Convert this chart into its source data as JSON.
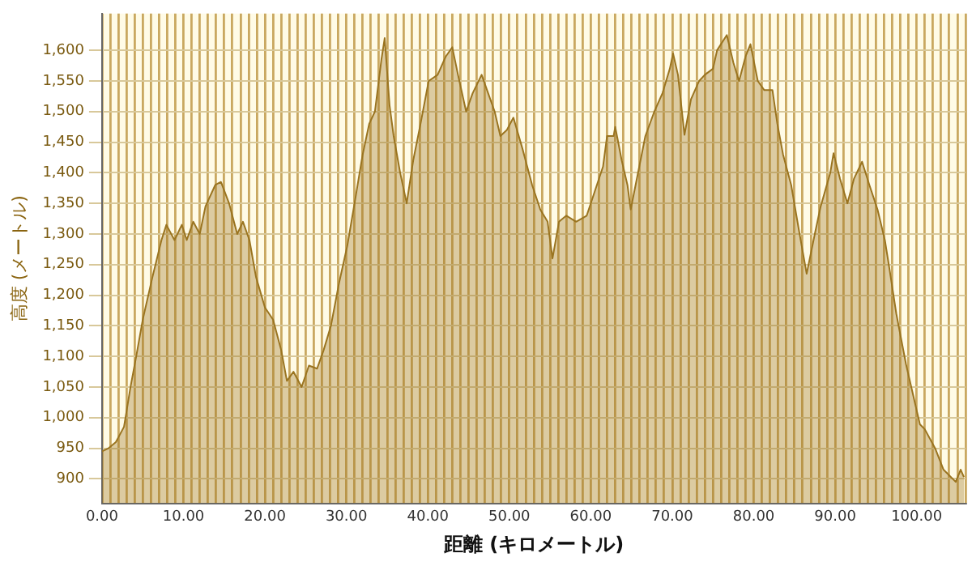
{
  "chart_data": {
    "type": "area",
    "xlabel": "距離 (キロメートル)",
    "ylabel": "高度 (メートル)",
    "xlim": [
      0,
      106
    ],
    "ylim": [
      860,
      1660
    ],
    "yticks": [
      {
        "value": 900,
        "label": "900"
      },
      {
        "value": 950,
        "label": "950"
      },
      {
        "value": 1000,
        "label": "1,000"
      },
      {
        "value": 1050,
        "label": "1,050"
      },
      {
        "value": 1100,
        "label": "1,100"
      },
      {
        "value": 1150,
        "label": "1,150"
      },
      {
        "value": 1200,
        "label": "1,200"
      },
      {
        "value": 1250,
        "label": "1,250"
      },
      {
        "value": 1300,
        "label": "1,300"
      },
      {
        "value": 1350,
        "label": "1,350"
      },
      {
        "value": 1400,
        "label": "1,400"
      },
      {
        "value": 1450,
        "label": "1,450"
      },
      {
        "value": 1500,
        "label": "1,500"
      },
      {
        "value": 1550,
        "label": "1,550"
      },
      {
        "value": 1600,
        "label": "1,600"
      }
    ],
    "xticks": [
      {
        "value": 0,
        "label": "0.00"
      },
      {
        "value": 1,
        "label": null
      },
      {
        "value": 2,
        "label": null
      },
      {
        "value": 3,
        "label": null
      },
      {
        "value": 4,
        "label": null
      },
      {
        "value": 5,
        "label": null
      },
      {
        "value": 6,
        "label": null
      },
      {
        "value": 7,
        "label": null
      },
      {
        "value": 8,
        "label": null
      },
      {
        "value": 9,
        "label": null
      },
      {
        "value": 10,
        "label": "10.00"
      },
      {
        "value": 11,
        "label": null
      },
      {
        "value": 12,
        "label": null
      },
      {
        "value": 13,
        "label": null
      },
      {
        "value": 14,
        "label": null
      },
      {
        "value": 15,
        "label": null
      },
      {
        "value": 16,
        "label": null
      },
      {
        "value": 17,
        "label": null
      },
      {
        "value": 18,
        "label": null
      },
      {
        "value": 19,
        "label": null
      },
      {
        "value": 20,
        "label": "20.00"
      },
      {
        "value": 21,
        "label": null
      },
      {
        "value": 22,
        "label": null
      },
      {
        "value": 23,
        "label": null
      },
      {
        "value": 24,
        "label": null
      },
      {
        "value": 25,
        "label": null
      },
      {
        "value": 26,
        "label": null
      },
      {
        "value": 27,
        "label": null
      },
      {
        "value": 28,
        "label": null
      },
      {
        "value": 29,
        "label": null
      },
      {
        "value": 30,
        "label": "30.00"
      },
      {
        "value": 31,
        "label": null
      },
      {
        "value": 32,
        "label": null
      },
      {
        "value": 33,
        "label": null
      },
      {
        "value": 34,
        "label": null
      },
      {
        "value": 35,
        "label": null
      },
      {
        "value": 36,
        "label": null
      },
      {
        "value": 37,
        "label": null
      },
      {
        "value": 38,
        "label": null
      },
      {
        "value": 39,
        "label": null
      },
      {
        "value": 40,
        "label": "40.00"
      },
      {
        "value": 41,
        "label": null
      },
      {
        "value": 42,
        "label": null
      },
      {
        "value": 43,
        "label": null
      },
      {
        "value": 44,
        "label": null
      },
      {
        "value": 45,
        "label": null
      },
      {
        "value": 46,
        "label": null
      },
      {
        "value": 47,
        "label": null
      },
      {
        "value": 48,
        "label": null
      },
      {
        "value": 49,
        "label": null
      },
      {
        "value": 50,
        "label": "50.00"
      },
      {
        "value": 51,
        "label": null
      },
      {
        "value": 52,
        "label": null
      },
      {
        "value": 53,
        "label": null
      },
      {
        "value": 54,
        "label": null
      },
      {
        "value": 55,
        "label": null
      },
      {
        "value": 56,
        "label": null
      },
      {
        "value": 57,
        "label": null
      },
      {
        "value": 58,
        "label": null
      },
      {
        "value": 59,
        "label": null
      },
      {
        "value": 60,
        "label": "60.00"
      },
      {
        "value": 61,
        "label": null
      },
      {
        "value": 62,
        "label": null
      },
      {
        "value": 63,
        "label": null
      },
      {
        "value": 64,
        "label": null
      },
      {
        "value": 65,
        "label": null
      },
      {
        "value": 66,
        "label": null
      },
      {
        "value": 67,
        "label": null
      },
      {
        "value": 68,
        "label": null
      },
      {
        "value": 69,
        "label": null
      },
      {
        "value": 70,
        "label": "70.00"
      },
      {
        "value": 71,
        "label": null
      },
      {
        "value": 72,
        "label": null
      },
      {
        "value": 73,
        "label": null
      },
      {
        "value": 74,
        "label": null
      },
      {
        "value": 75,
        "label": null
      },
      {
        "value": 76,
        "label": null
      },
      {
        "value": 77,
        "label": null
      },
      {
        "value": 78,
        "label": null
      },
      {
        "value": 79,
        "label": null
      },
      {
        "value": 80,
        "label": "80.00"
      },
      {
        "value": 81,
        "label": null
      },
      {
        "value": 82,
        "label": null
      },
      {
        "value": 83,
        "label": null
      },
      {
        "value": 84,
        "label": null
      },
      {
        "value": 85,
        "label": null
      },
      {
        "value": 86,
        "label": null
      },
      {
        "value": 87,
        "label": null
      },
      {
        "value": 88,
        "label": null
      },
      {
        "value": 89,
        "label": null
      },
      {
        "value": 90,
        "label": "90.00"
      },
      {
        "value": 91,
        "label": null
      },
      {
        "value": 92,
        "label": null
      },
      {
        "value": 93,
        "label": null
      },
      {
        "value": 94,
        "label": null
      },
      {
        "value": 95,
        "label": null
      },
      {
        "value": 96,
        "label": null
      },
      {
        "value": 97,
        "label": null
      },
      {
        "value": 98,
        "label": null
      },
      {
        "value": 99,
        "label": null
      },
      {
        "value": 100,
        "label": "100.00"
      },
      {
        "value": 101,
        "label": null
      },
      {
        "value": 102,
        "label": null
      },
      {
        "value": 103,
        "label": null
      },
      {
        "value": 104,
        "label": null
      },
      {
        "value": 105,
        "label": null
      },
      {
        "value": 106,
        "label": null
      }
    ],
    "grid": true,
    "legend": false,
    "marker": "none",
    "line_style": "solid",
    "series": [
      {
        "color": "#9a7420",
        "x": [
          0,
          0.8,
          1.7,
          2.7,
          3.5,
          4.2,
          5,
          6.2,
          7.3,
          7.9,
          8.9,
          9.8,
          10.4,
          11.2,
          12,
          12.7,
          13.9,
          14.6,
          15.6,
          16.6,
          17.3,
          18.1,
          18.9,
          20,
          21,
          22,
          22.7,
          23.5,
          24.5,
          25.4,
          26.4,
          27.2,
          28.1,
          29.1,
          30.1,
          31,
          32,
          32.8,
          33.5,
          34.3,
          34.7,
          35.3,
          35.8,
          36.6,
          37.4,
          38.2,
          39.1,
          40.1,
          41.2,
          42.2,
          43,
          43.7,
          44.7,
          45.5,
          46.6,
          47.4,
          48.2,
          48.9,
          49.7,
          50.5,
          51.6,
          52.8,
          53.8,
          54.7,
          55.3,
          56.1,
          57,
          58.2,
          59.5,
          60.5,
          61.5,
          62,
          62.8,
          63,
          63.8,
          64.5,
          64.9,
          65.5,
          66.7,
          67.8,
          68.8,
          69.7,
          70.1,
          70.7,
          71.5,
          72.3,
          73.3,
          74,
          75,
          75.5,
          76.7,
          77.5,
          78.2,
          79,
          79.6,
          80.5,
          81.3,
          82.3,
          82.9,
          83.6,
          84.6,
          85.5,
          86.5,
          87.5,
          88.2,
          89.4,
          89.8,
          90.6,
          91.5,
          92.3,
          93.3,
          94.2,
          95.2,
          96.1,
          96.7,
          97.5,
          98.7,
          100.4,
          101,
          102.3,
          103.3,
          104.8,
          105.4,
          105.8
        ],
        "values": [
          945,
          950,
          960,
          985,
          1050,
          1100,
          1160,
          1230,
          1290,
          1315,
          1290,
          1315,
          1290,
          1320,
          1300,
          1345,
          1380,
          1385,
          1350,
          1300,
          1320,
          1290,
          1230,
          1180,
          1160,
          1110,
          1060,
          1075,
          1050,
          1085,
          1080,
          1110,
          1150,
          1220,
          1280,
          1350,
          1430,
          1480,
          1500,
          1585,
          1620,
          1510,
          1460,
          1400,
          1350,
          1420,
          1480,
          1550,
          1560,
          1590,
          1605,
          1560,
          1500,
          1530,
          1560,
          1530,
          1500,
          1460,
          1470,
          1490,
          1440,
          1380,
          1340,
          1320,
          1260,
          1320,
          1330,
          1320,
          1330,
          1370,
          1410,
          1460,
          1460,
          1475,
          1420,
          1380,
          1340,
          1380,
          1460,
          1500,
          1530,
          1570,
          1595,
          1560,
          1462,
          1520,
          1550,
          1560,
          1570,
          1600,
          1625,
          1580,
          1550,
          1590,
          1610,
          1550,
          1535,
          1535,
          1480,
          1430,
          1380,
          1310,
          1235,
          1300,
          1344,
          1400,
          1432,
          1390,
          1350,
          1390,
          1418,
          1380,
          1340,
          1290,
          1240,
          1170,
          1087,
          989,
          981,
          949,
          915,
          895,
          915,
          903
        ]
      }
    ]
  }
}
